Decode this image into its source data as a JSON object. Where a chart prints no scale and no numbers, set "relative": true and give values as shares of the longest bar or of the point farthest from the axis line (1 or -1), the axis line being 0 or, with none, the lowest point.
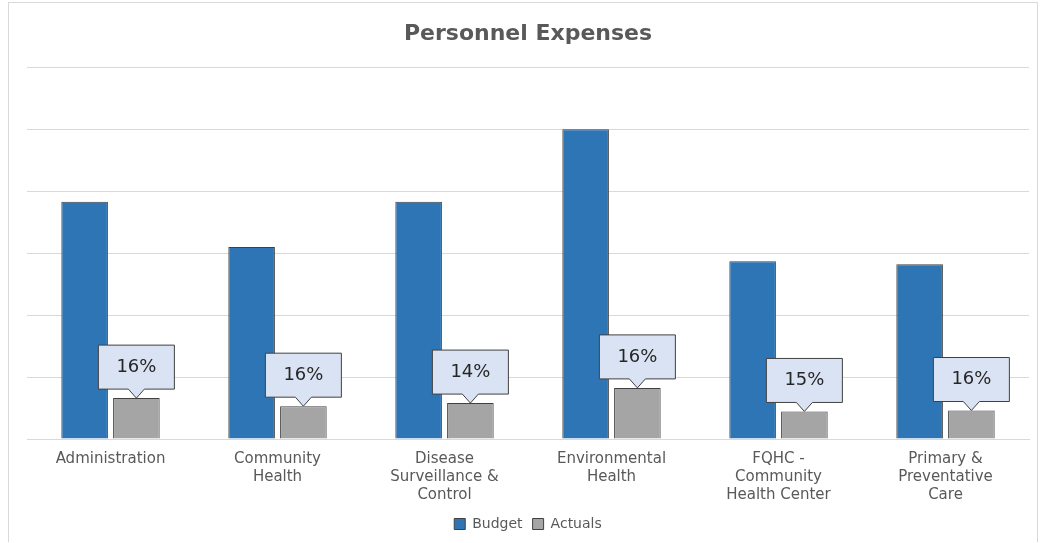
{
  "chart_data": {
    "type": "bar",
    "title": "Personnel Expenses",
    "relative": true,
    "grid": "y",
    "legend": "bottom",
    "categories": [
      "Administration",
      "Community Health",
      "Disease Surveillance & Control",
      "Environmental Health",
      "FQHC - Community Health Center",
      "Primary & Preventative Care"
    ],
    "series": [
      {
        "name": "Budget",
        "color": "#2e75b6",
        "values": [
          0.766,
          0.62,
          0.766,
          1,
          0.574,
          0.564
        ]
      },
      {
        "name": "Actuals",
        "color": "#a5a5a5",
        "values": [
          0.132,
          0.106,
          0.116,
          0.165,
          0.089,
          0.092
        ]
      }
    ],
    "annotations": [
      {
        "text": "16%",
        "x": "Administration",
        "y": 0.132
      },
      {
        "text": "16%",
        "x": "Community Health",
        "y": 0.106
      },
      {
        "text": "14%",
        "x": "Disease Surveillance & Control",
        "y": 0.116
      },
      {
        "text": "16%",
        "x": "Environmental Health",
        "y": 0.165
      },
      {
        "text": "15%",
        "x": "FQHC - Community Health Center",
        "y": 0.089
      },
      {
        "text": "16%",
        "x": "Primary & Preventative Care",
        "y": 0.092
      }
    ]
  }
}
